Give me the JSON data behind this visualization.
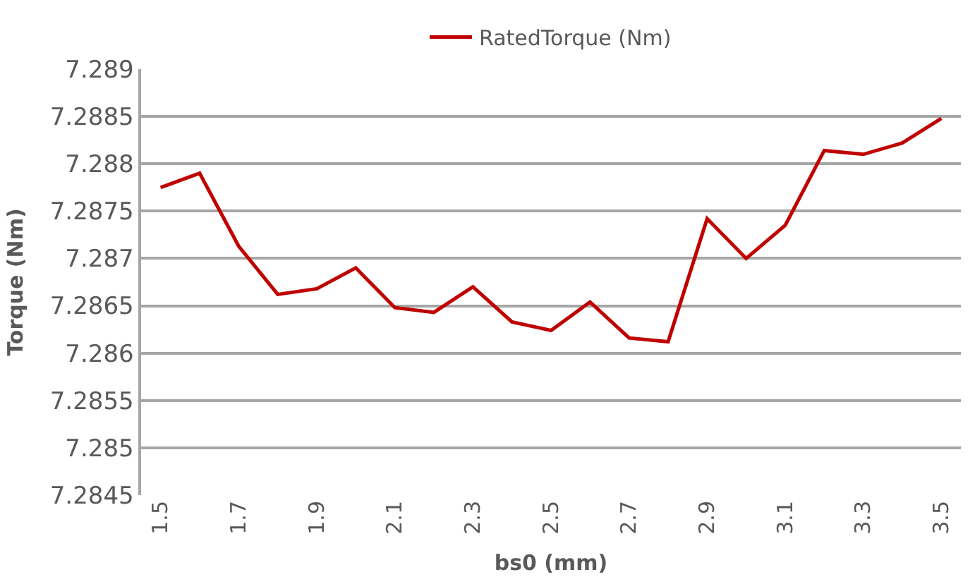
{
  "chart_data": {
    "type": "line",
    "xlabel": "bs0 (mm)",
    "ylabel": "Torque (Nm)",
    "x": [
      1.5,
      1.6,
      1.7,
      1.8,
      1.9,
      2.0,
      2.1,
      2.2,
      2.3,
      2.4,
      2.5,
      2.6,
      2.7,
      2.8,
      2.9,
      3.0,
      3.1,
      3.2,
      3.3,
      3.4,
      3.5
    ],
    "series": [
      {
        "name": "RatedTorque (Nm)",
        "color": "#c00000",
        "values": [
          7.28775,
          7.2879,
          7.28713,
          7.28662,
          7.28668,
          7.2869,
          7.28648,
          7.28643,
          7.2867,
          7.28633,
          7.28624,
          7.28654,
          7.28616,
          7.28612,
          7.28742,
          7.287,
          7.28735,
          7.28814,
          7.2881,
          7.28822,
          7.28848
        ]
      }
    ],
    "xlim": [
      1.45,
      3.55
    ],
    "xticks": [
      1.5,
      1.7,
      1.9,
      2.1,
      2.3,
      2.5,
      2.7,
      2.9,
      3.1,
      3.3,
      3.5
    ],
    "ylim": [
      7.2845,
      7.289
    ],
    "yticks": [
      7.2845,
      7.285,
      7.2855,
      7.286,
      7.2865,
      7.287,
      7.2875,
      7.288,
      7.2885,
      7.289
    ],
    "grid": "y",
    "legend": "top",
    "marker": "none",
    "line_style": "solid"
  }
}
